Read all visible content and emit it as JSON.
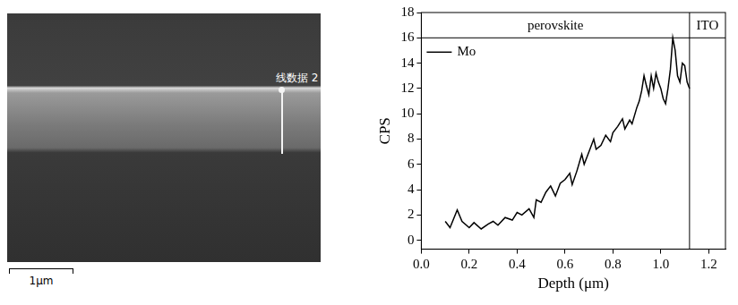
{
  "sem_image": {
    "line_label": "线数据 2",
    "scale_bar": "1μm"
  },
  "chart_data": {
    "type": "line",
    "x_label": "Depth (μm)",
    "y_label": "CPS",
    "xlim": [
      0,
      1.27
    ],
    "xticks": [
      {
        "value": 0,
        "label": "0.0"
      },
      0.2,
      0.4,
      0.6,
      0.8,
      {
        "value": 1,
        "label": "1.0"
      },
      1.2
    ],
    "ylim": [
      -0.7,
      18
    ],
    "yticks": [
      0,
      2,
      4,
      6,
      8,
      10,
      12,
      14,
      16,
      18
    ],
    "grid": false,
    "legend": "upper left",
    "regions": [
      {
        "label": "perovskite",
        "x": [
          0,
          1.12
        ]
      },
      {
        "label": "ITO",
        "x": [
          1.12,
          1.27
        ]
      }
    ],
    "header_y": 16,
    "series": [
      {
        "name": "Mo",
        "color": "#000000",
        "x": [
          0.1,
          0.12,
          0.15,
          0.17,
          0.2,
          0.22,
          0.25,
          0.28,
          0.3,
          0.32,
          0.35,
          0.38,
          0.4,
          0.42,
          0.45,
          0.47,
          0.48,
          0.5,
          0.52,
          0.54,
          0.56,
          0.58,
          0.6,
          0.62,
          0.63,
          0.65,
          0.67,
          0.68,
          0.7,
          0.72,
          0.73,
          0.75,
          0.77,
          0.79,
          0.8,
          0.82,
          0.84,
          0.85,
          0.87,
          0.88,
          0.9,
          0.91,
          0.92,
          0.93,
          0.94,
          0.95,
          0.96,
          0.97,
          0.98,
          0.99,
          1.0,
          1.01,
          1.02,
          1.03,
          1.04,
          1.05,
          1.06,
          1.07,
          1.08,
          1.09,
          1.1,
          1.11,
          1.12
        ],
        "values": [
          1.5,
          1.0,
          2.4,
          1.5,
          1.0,
          1.4,
          0.9,
          1.3,
          1.5,
          1.2,
          1.8,
          1.6,
          2.2,
          2.0,
          2.5,
          1.8,
          3.2,
          3.0,
          3.8,
          4.3,
          3.5,
          4.5,
          4.8,
          5.3,
          4.4,
          5.5,
          6.8,
          6.0,
          7.0,
          8.0,
          7.2,
          7.5,
          8.3,
          7.8,
          8.5,
          9.0,
          9.6,
          8.8,
          9.5,
          9.2,
          10.5,
          11.0,
          11.8,
          13.0,
          12.2,
          11.5,
          13.0,
          12.0,
          13.2,
          12.5,
          12.0,
          11.2,
          10.8,
          12.0,
          13.5,
          16.0,
          15.0,
          13.0,
          12.5,
          14.0,
          13.8,
          12.5,
          12.0
        ]
      }
    ]
  }
}
